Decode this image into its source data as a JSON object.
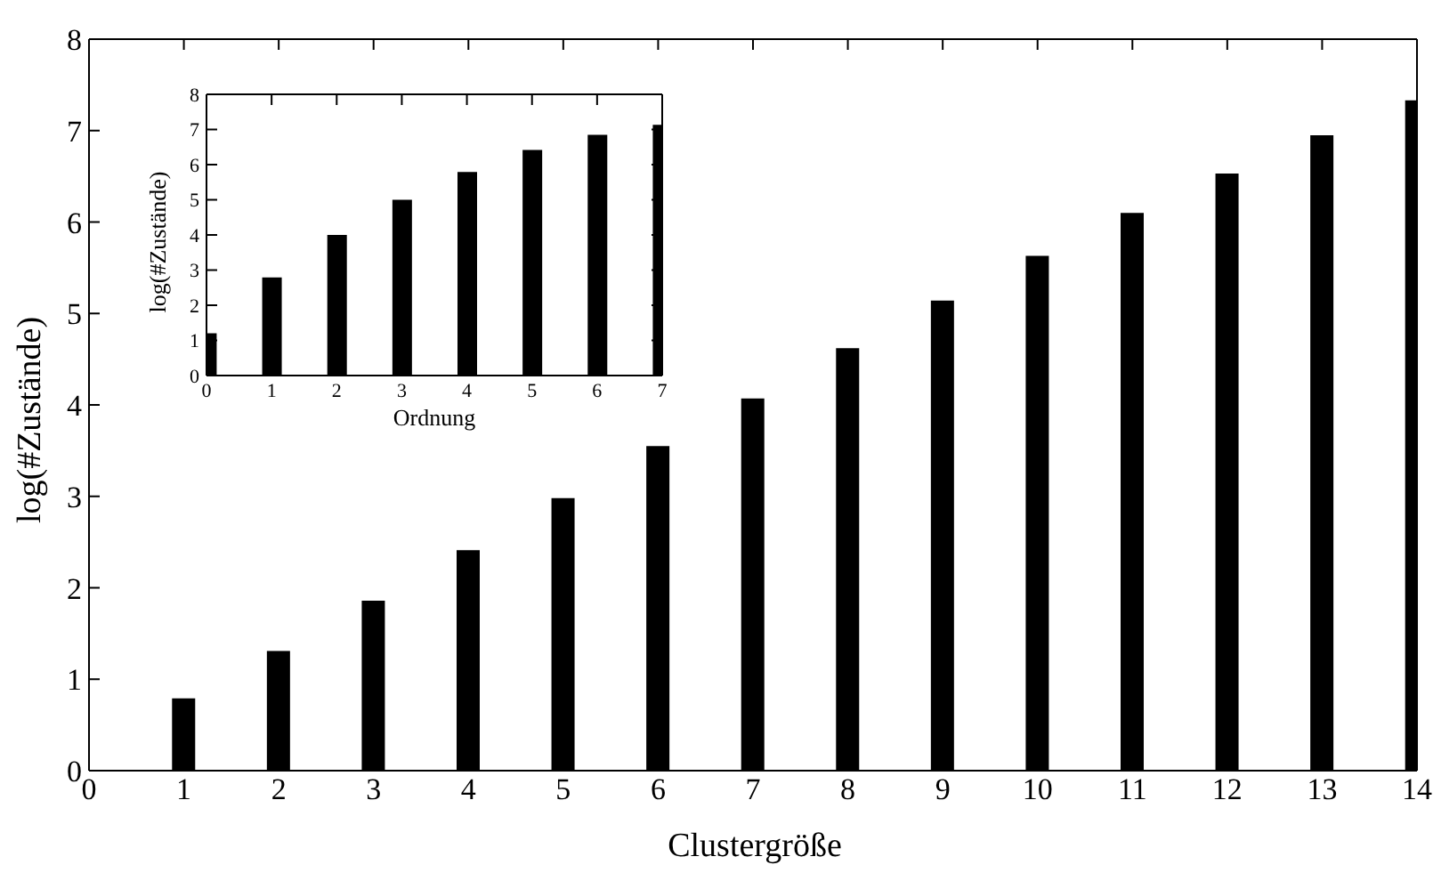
{
  "chart_data": [
    {
      "type": "bar",
      "xlabel": "Clustergröße",
      "ylabel": "log(#Zustände)",
      "x": [
        1,
        2,
        3,
        4,
        5,
        6,
        7,
        8,
        9,
        10,
        11,
        12,
        13,
        14
      ],
      "values": [
        0.79,
        1.31,
        1.86,
        2.41,
        2.98,
        3.55,
        4.07,
        4.62,
        5.14,
        5.63,
        6.1,
        6.53,
        6.95,
        7.33
      ],
      "color": "#000000",
      "xlim": [
        0,
        14
      ],
      "ylim": [
        0,
        8
      ],
      "xticks": [
        0,
        1,
        2,
        3,
        4,
        5,
        6,
        7,
        8,
        9,
        10,
        11,
        12,
        13,
        14
      ],
      "yticks": [
        0,
        1,
        2,
        3,
        4,
        5,
        6,
        7,
        8
      ],
      "grid": false,
      "legend": false
    },
    {
      "type": "bar",
      "xlabel": "Ordnung",
      "ylabel": "log(#Zustände)",
      "x": [
        0,
        1,
        2,
        3,
        4,
        5,
        6,
        7
      ],
      "values": [
        1.2,
        2.79,
        4.0,
        5.0,
        5.79,
        6.42,
        6.85,
        7.13
      ],
      "color": "#000000",
      "xlim": [
        0,
        7
      ],
      "ylim": [
        0,
        8
      ],
      "xticks": [
        0,
        1,
        2,
        3,
        4,
        5,
        6,
        7
      ],
      "yticks": [
        0,
        1,
        2,
        3,
        4,
        5,
        6,
        7,
        8
      ],
      "grid": false,
      "legend": false
    }
  ]
}
